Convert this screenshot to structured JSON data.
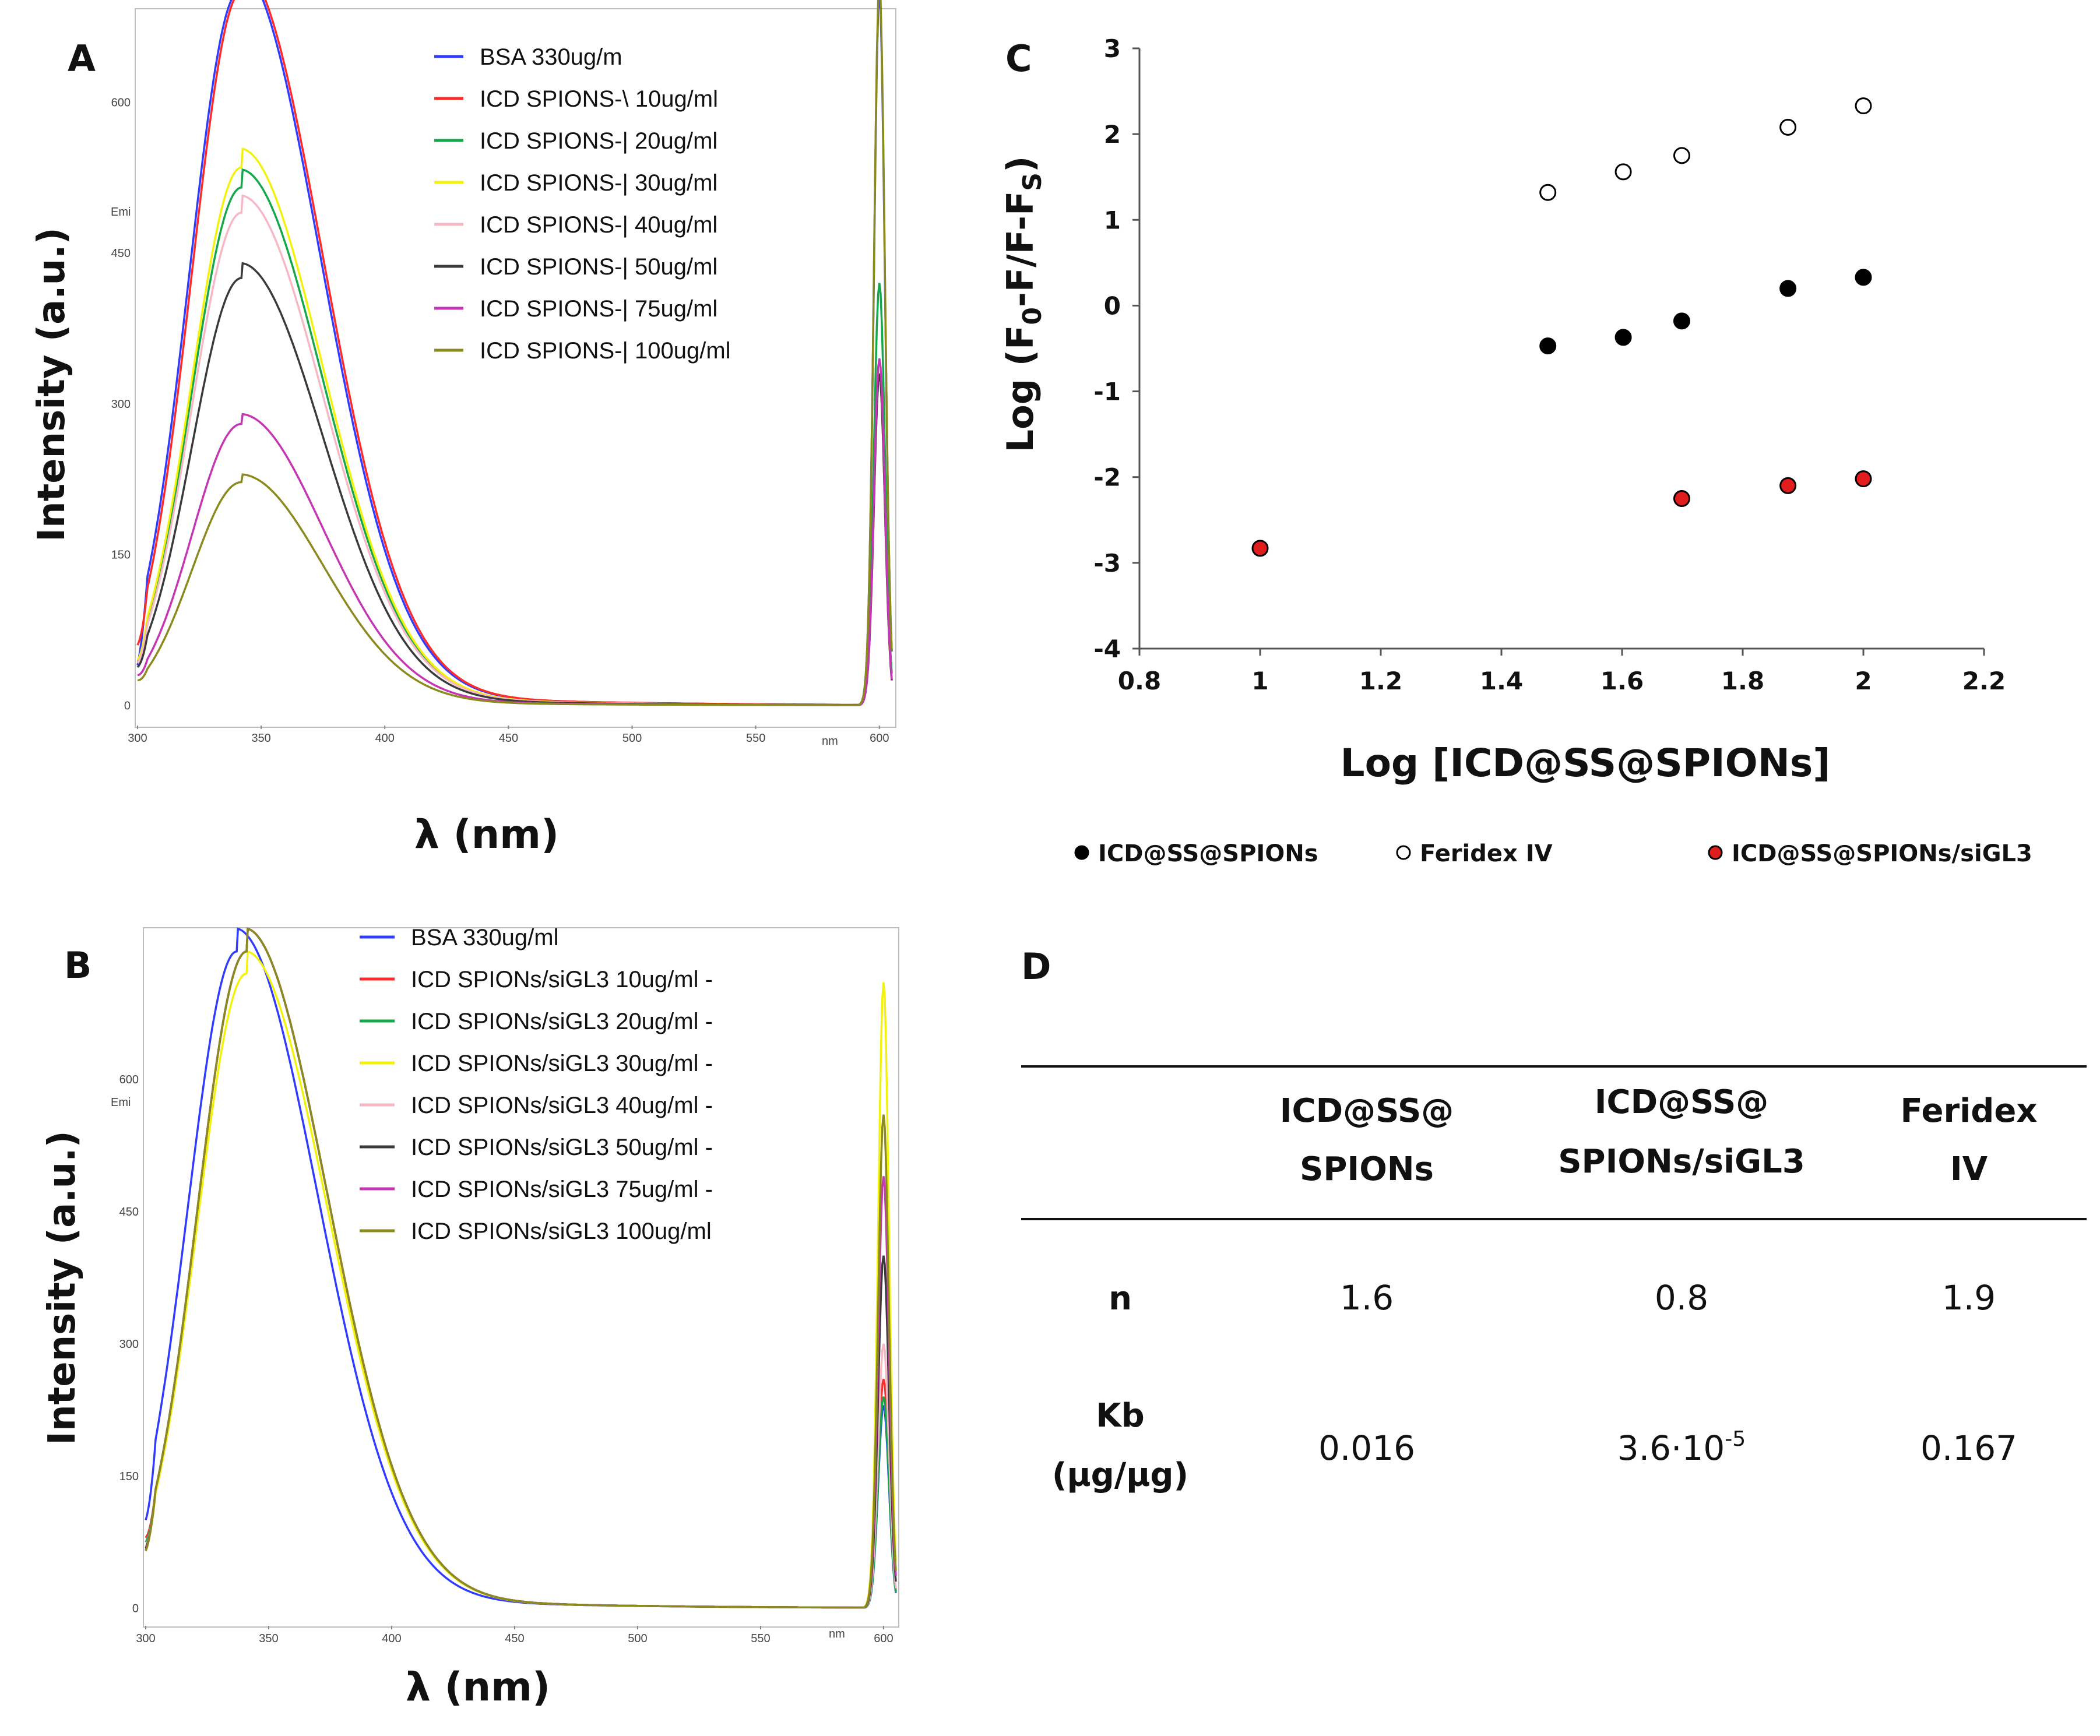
{
  "panels": {
    "A": {
      "letter": "A",
      "ylabel": "Intensity (a.u.)",
      "xlabel": "λ (nm)",
      "emi_label": "Emi",
      "nm_label": "nm",
      "legend": [
        {
          "label": "BSA 330ug/m",
          "color": "#2f3cff"
        },
        {
          "label": "ICD SPIONS-\\ 10ug/ml",
          "color": "#ff2b2b"
        },
        {
          "label": "ICD SPIONS-| 20ug/ml",
          "color": "#14a84b"
        },
        {
          "label": "ICD SPIONS-| 30ug/ml",
          "color": "#f3f20b"
        },
        {
          "label": "ICD SPIONS-| 40ug/ml",
          "color": "#f7b8c6"
        },
        {
          "label": "ICD SPIONS-| 50ug/ml",
          "color": "#3a3a3a"
        },
        {
          "label": "ICD SPIONS-| 75ug/ml",
          "color": "#c536b4"
        },
        {
          "label": "ICD SPIONS-| 100ug/ml",
          "color": "#8a8a1e"
        }
      ]
    },
    "B": {
      "letter": "B",
      "ylabel": "Intensity (a.u.)",
      "xlabel": "λ (nm)",
      "emi_label": "Emi",
      "nm_label": "nm",
      "legend": [
        {
          "label": "BSA 330ug/ml",
          "color": "#2f3cff"
        },
        {
          "label": "ICD SPIONs/siGL3 10ug/ml -",
          "color": "#ff2b2b"
        },
        {
          "label": "ICD SPIONs/siGL3 20ug/ml -",
          "color": "#14a84b"
        },
        {
          "label": "ICD SPIONs/siGL3 30ug/ml -",
          "color": "#f3f20b"
        },
        {
          "label": "ICD SPIONs/siGL3 40ug/ml -",
          "color": "#f7b8c6"
        },
        {
          "label": "ICD SPIONs/siGL3 50ug/ml -",
          "color": "#3a3a3a"
        },
        {
          "label": "ICD SPIONs/siGL3 75ug/ml -",
          "color": "#c536b4"
        },
        {
          "label": "ICD SPIONs/siGL3 100ug/ml",
          "color": "#8a8a1e"
        }
      ]
    },
    "C": {
      "letter": "C",
      "ylabel_main": "Log (F",
      "ylabel_sub0": "0",
      "ylabel_mid": "-F/F-F",
      "ylabel_subS": "S",
      "ylabel_end": ")",
      "xlabel": "Log [ICD@SS@SPIONs]"
    },
    "D": {
      "letter": "D",
      "headers": [
        {
          "line1": "ICD@SS@",
          "line2": "SPIONs"
        },
        {
          "line1": "ICD@SS@",
          "line2": "SPIONs/siGL3"
        },
        {
          "line1": "Feridex",
          "line2": "IV"
        }
      ],
      "row_n": {
        "label": "n",
        "values": [
          "1.6",
          "0.8",
          "1.9"
        ]
      },
      "row_kb": {
        "label1": "Kb",
        "label2": "(µg/µg)",
        "v1": "0.016",
        "v2_base": "3.6·10",
        "v2_exp": "-5",
        "v3": "0.167"
      }
    }
  },
  "chart_data": [
    {
      "panel": "A",
      "type": "line",
      "title": "",
      "xlabel": "λ (nm)",
      "ylabel": "Intensity (a.u.)",
      "xlim": [
        300,
        605
      ],
      "ylim": [
        -20,
        690
      ],
      "xticks": [
        300,
        350,
        400,
        450,
        500,
        550,
        600
      ],
      "yticks": [
        0,
        150,
        300,
        450,
        600
      ],
      "series": [
        {
          "name": "BSA 330ug/m",
          "color": "#2f3cff",
          "peak_x": 341,
          "peak_y": 710,
          "start_y": 40,
          "end_y": 710
        },
        {
          "name": "ICD SPIONS-\\ 10ug/ml",
          "color": "#ff2b2b",
          "peak_x": 342,
          "peak_y": 710,
          "start_y": 60,
          "end_y": 330
        },
        {
          "name": "ICD SPIONS-| 20ug/ml",
          "color": "#14a84b",
          "peak_x": 342,
          "peak_y": 515,
          "start_y": 45,
          "end_y": 420
        },
        {
          "name": "ICD SPIONS-| 30ug/ml",
          "color": "#f3f20b",
          "peak_x": 342,
          "peak_y": 535,
          "start_y": 45,
          "end_y": 330
        },
        {
          "name": "ICD SPIONS-| 40ug/ml",
          "color": "#f7b8c6",
          "peak_x": 342,
          "peak_y": 490,
          "start_y": 42,
          "end_y": 330
        },
        {
          "name": "ICD SPIONS-| 50ug/ml",
          "color": "#3a3a3a",
          "peak_x": 342,
          "peak_y": 425,
          "start_y": 38,
          "end_y": 330
        },
        {
          "name": "ICD SPIONS-| 75ug/ml",
          "color": "#c536b4",
          "peak_x": 342,
          "peak_y": 280,
          "start_y": 30,
          "end_y": 345
        },
        {
          "name": "ICD SPIONS-| 100ug/ml",
          "color": "#8a8a1e",
          "peak_x": 342,
          "peak_y": 222,
          "start_y": 25,
          "end_y": 720
        }
      ]
    },
    {
      "panel": "B",
      "type": "line",
      "title": "",
      "xlabel": "λ (nm)",
      "ylabel": "Intensity (a.u.)",
      "xlim": [
        300,
        605
      ],
      "ylim": [
        -20,
        770
      ],
      "xticks": [
        300,
        350,
        400,
        450,
        500,
        550,
        600
      ],
      "yticks": [
        0,
        150,
        300,
        450,
        600
      ],
      "series": [
        {
          "name": "BSA 330ug/ml",
          "color": "#2f3cff",
          "peak_x": 337,
          "peak_y": 745,
          "start_y": 100,
          "end_y": 230
        },
        {
          "name": "ICD SPIONs/siGL3 10ug/ml -",
          "color": "#ff2b2b",
          "peak_x": 341,
          "peak_y": 745,
          "start_y": 80,
          "end_y": 260
        },
        {
          "name": "ICD SPIONs/siGL3 20ug/ml -",
          "color": "#14a84b",
          "peak_x": 341,
          "peak_y": 745,
          "start_y": 75,
          "end_y": 240
        },
        {
          "name": "ICD SPIONs/siGL3 30ug/ml -",
          "color": "#f3f20b",
          "peak_x": 341,
          "peak_y": 720,
          "start_y": 70,
          "end_y": 710
        },
        {
          "name": "ICD SPIONs/siGL3 40ug/ml -",
          "color": "#f7b8c6",
          "peak_x": 341,
          "peak_y": 745,
          "start_y": 70,
          "end_y": 300
        },
        {
          "name": "ICD SPIONs/siGL3 50ug/ml -",
          "color": "#3a3a3a",
          "peak_x": 341,
          "peak_y": 745,
          "start_y": 68,
          "end_y": 400
        },
        {
          "name": "ICD SPIONs/siGL3 75ug/ml -",
          "color": "#c536b4",
          "peak_x": 341,
          "peak_y": 745,
          "start_y": 66,
          "end_y": 490
        },
        {
          "name": "ICD SPIONs/siGL3 100ug/ml",
          "color": "#8a8a1e",
          "peak_x": 341,
          "peak_y": 745,
          "start_y": 65,
          "end_y": 560
        }
      ]
    },
    {
      "panel": "C",
      "type": "scatter",
      "title": "",
      "xlabel": "Log [ICD@SS@SPIONs]",
      "ylabel": "Log (F0-F/F-FS)",
      "xlim": [
        0.8,
        2.2
      ],
      "ylim": [
        -4,
        3
      ],
      "xticks": [
        "0.8",
        "1",
        "1.2",
        "1.4",
        "1.6",
        "1.8",
        "2",
        "2.2"
      ],
      "yticks": [
        "3",
        "2",
        "1",
        "0",
        "-1",
        "-2",
        "-3",
        "-4"
      ],
      "legend_position": "bottom",
      "series": [
        {
          "name": "ICD@SS@SPIONs",
          "fill": "#000000",
          "stroke": "#000000",
          "x": [
            1.477,
            1.602,
            1.699,
            1.875,
            2.0
          ],
          "y": [
            -0.47,
            -0.37,
            -0.18,
            0.2,
            0.33
          ]
        },
        {
          "name": "Feridex IV",
          "fill": "#ffffff",
          "stroke": "#000000",
          "x": [
            1.477,
            1.602,
            1.699,
            1.875,
            2.0
          ],
          "y": [
            1.32,
            1.56,
            1.75,
            2.08,
            2.33
          ]
        },
        {
          "name": "ICD@SS@SPIONs/siGL3",
          "fill": "#e01c1c",
          "stroke": "#000000",
          "x": [
            1.0,
            1.699,
            1.875,
            2.0
          ],
          "y": [
            -2.83,
            -2.25,
            -2.1,
            -2.02
          ]
        }
      ]
    },
    {
      "panel": "D",
      "type": "table",
      "columns": [
        "ICD@SS@SPIONs",
        "ICD@SS@SPIONs/siGL3",
        "Feridex IV"
      ],
      "rows": [
        {
          "label": "n",
          "values": [
            "1.6",
            "0.8",
            "1.9"
          ]
        },
        {
          "label": "Kb (µg/µg)",
          "values": [
            "0.016",
            "3.6·10-5",
            "0.167"
          ]
        }
      ]
    }
  ]
}
